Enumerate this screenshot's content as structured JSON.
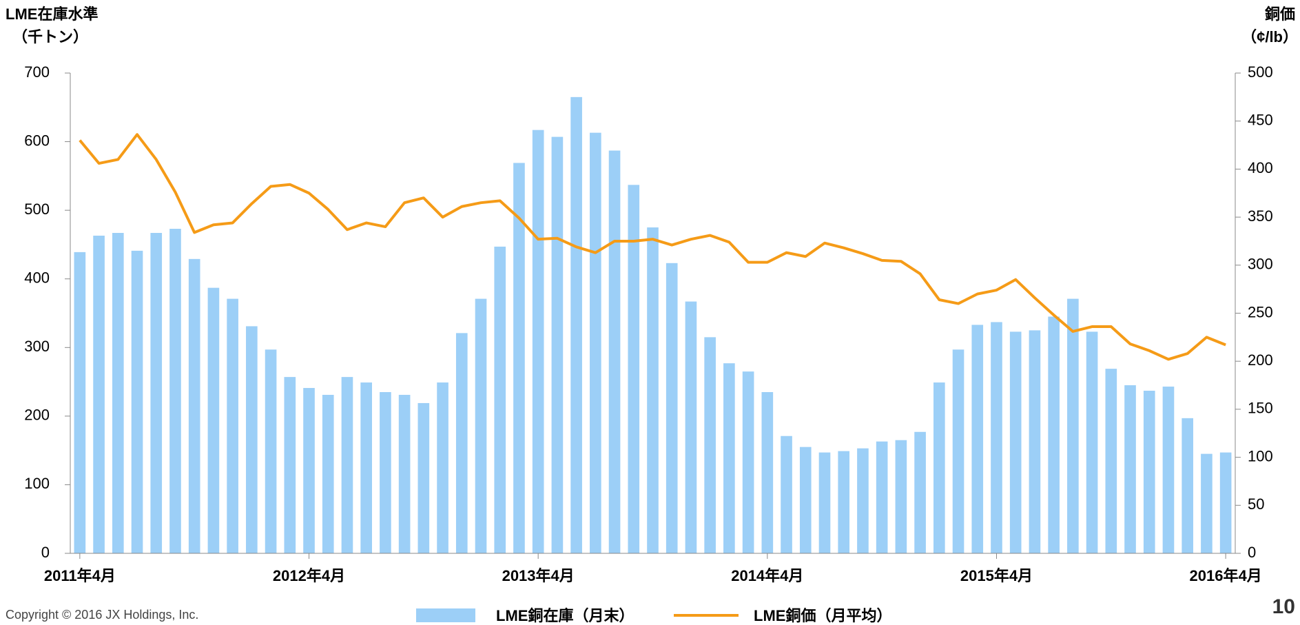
{
  "chart_data": {
    "type": "bar",
    "left_axis_title": [
      "LME在庫水準",
      "（千トン）"
    ],
    "right_axis_title": [
      "銅価",
      "（¢/lb）"
    ],
    "categories": [
      "2011年4月",
      null,
      null,
      null,
      null,
      null,
      null,
      null,
      null,
      null,
      null,
      null,
      "2012年4月",
      null,
      null,
      null,
      null,
      null,
      null,
      null,
      null,
      null,
      null,
      null,
      "2013年4月",
      null,
      null,
      null,
      null,
      null,
      null,
      null,
      null,
      null,
      null,
      null,
      "2014年4月",
      null,
      null,
      null,
      null,
      null,
      null,
      null,
      null,
      null,
      null,
      null,
      "2015年4月",
      null,
      null,
      null,
      null,
      null,
      null,
      null,
      null,
      null,
      null,
      null,
      "2016年4月"
    ],
    "series": [
      {
        "name": "LME銅在庫（月末）",
        "type": "bar",
        "color": "#9ccff7",
        "values": [
          439,
          463,
          467,
          441,
          467,
          473,
          429,
          387,
          371,
          331,
          297,
          257,
          241,
          231,
          257,
          249,
          235,
          231,
          219,
          249,
          321,
          371,
          447,
          569,
          617,
          607,
          665,
          613,
          587,
          537,
          475,
          423,
          367,
          315,
          277,
          265,
          235,
          171,
          155,
          147,
          149,
          153,
          163,
          165,
          177,
          249,
          297,
          333,
          337,
          323,
          325,
          345,
          371,
          323,
          269,
          245,
          237,
          243,
          197,
          145,
          147
        ]
      },
      {
        "name": "LME銅価（月平均）",
        "type": "line",
        "axis": "y2",
        "color": "#f59b17",
        "values": [
          430,
          406,
          410,
          436,
          410,
          376,
          334,
          342,
          344,
          364,
          382,
          384,
          375,
          358,
          337,
          344,
          340,
          365,
          370,
          350,
          361,
          365,
          367,
          349,
          327,
          328,
          319,
          313,
          325,
          325,
          327,
          321,
          327,
          331,
          324,
          303,
          303,
          313,
          309,
          323,
          318,
          312,
          305,
          304,
          291,
          264,
          260,
          270,
          274,
          285,
          266,
          248,
          231,
          236,
          236,
          218,
          211,
          202,
          208,
          225,
          217
        ]
      }
    ],
    "ylim": [
      0,
      700
    ],
    "yticks": [
      0,
      100,
      200,
      300,
      400,
      500,
      600,
      700
    ],
    "y2lim": [
      0,
      500
    ],
    "y2ticks": [
      0,
      50,
      100,
      150,
      200,
      250,
      300,
      350,
      400,
      450,
      500
    ],
    "copyright": "Copyright © 2016 JX Holdings, Inc.",
    "page_number": "10"
  }
}
